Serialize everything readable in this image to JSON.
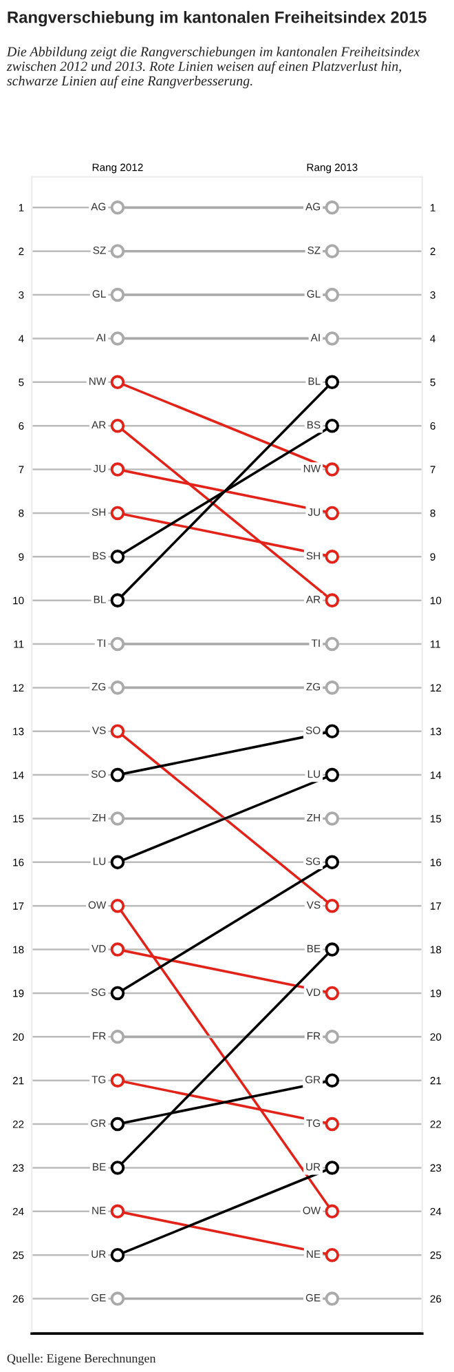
{
  "chart_data": {
    "type": "line",
    "title": "Rangverschiebung im kantonalen Freiheitsindex 2015",
    "subtitle": "Die Abbildung zeigt die Rangverschiebungen im kantonalen Freiheitsindex zwischen 2012 und 2013. Rote Linien weisen auf einen Platzverlust hin, schwarze Linien auf eine Rangverbesserung.",
    "annotations": [
      "Quelle: Eigene Berechnungen"
    ],
    "categories": [
      "Rang 2012",
      "Rang 2013"
    ],
    "ylim": [
      26.8,
      0.3
    ],
    "yticks": [
      1,
      2,
      3,
      4,
      5,
      6,
      7,
      8,
      9,
      10,
      11,
      12,
      13,
      14,
      15,
      16,
      17,
      18,
      19,
      20,
      21,
      22,
      23,
      24,
      25,
      26
    ],
    "y2lim": [
      26.8,
      0.3
    ],
    "y2ticks": [
      1,
      2,
      3,
      4,
      5,
      6,
      7,
      8,
      9,
      10,
      11,
      12,
      13,
      14,
      15,
      16,
      17,
      18,
      19,
      20,
      21,
      22,
      23,
      24,
      25,
      26
    ],
    "grid": "y",
    "marker": "circle",
    "line_style": "solid",
    "series": [
      {
        "name": "AG",
        "color": "#aaaaaa",
        "values": [
          1,
          1
        ]
      },
      {
        "name": "SZ",
        "color": "#aaaaaa",
        "values": [
          2,
          2
        ]
      },
      {
        "name": "GL",
        "color": "#aaaaaa",
        "values": [
          3,
          3
        ]
      },
      {
        "name": "AI",
        "color": "#aaaaaa",
        "values": [
          4,
          4
        ]
      },
      {
        "name": "NW",
        "color": "#e2231a",
        "values": [
          5,
          7
        ]
      },
      {
        "name": "AR",
        "color": "#e2231a",
        "values": [
          6,
          10
        ]
      },
      {
        "name": "JU",
        "color": "#e2231a",
        "values": [
          7,
          8
        ]
      },
      {
        "name": "SH",
        "color": "#e2231a",
        "values": [
          8,
          9
        ]
      },
      {
        "name": "BS",
        "color": "#000000",
        "values": [
          9,
          6
        ]
      },
      {
        "name": "BL",
        "color": "#000000",
        "values": [
          10,
          5
        ]
      },
      {
        "name": "TI",
        "color": "#aaaaaa",
        "values": [
          11,
          11
        ]
      },
      {
        "name": "ZG",
        "color": "#aaaaaa",
        "values": [
          12,
          12
        ]
      },
      {
        "name": "VS",
        "color": "#e2231a",
        "values": [
          13,
          17
        ]
      },
      {
        "name": "SO",
        "color": "#000000",
        "values": [
          14,
          13
        ]
      },
      {
        "name": "ZH",
        "color": "#aaaaaa",
        "values": [
          15,
          15
        ]
      },
      {
        "name": "LU",
        "color": "#000000",
        "values": [
          16,
          14
        ]
      },
      {
        "name": "OW",
        "color": "#e2231a",
        "values": [
          17,
          24
        ]
      },
      {
        "name": "VD",
        "color": "#e2231a",
        "values": [
          18,
          19
        ]
      },
      {
        "name": "SG",
        "color": "#000000",
        "values": [
          19,
          16
        ]
      },
      {
        "name": "FR",
        "color": "#aaaaaa",
        "values": [
          20,
          20
        ]
      },
      {
        "name": "TG",
        "color": "#e2231a",
        "values": [
          21,
          22
        ]
      },
      {
        "name": "GR",
        "color": "#000000",
        "values": [
          22,
          21
        ]
      },
      {
        "name": "BE",
        "color": "#000000",
        "values": [
          23,
          18
        ]
      },
      {
        "name": "NE",
        "color": "#e2231a",
        "values": [
          24,
          25
        ]
      },
      {
        "name": "UR",
        "color": "#000000",
        "values": [
          25,
          23
        ]
      },
      {
        "name": "GE",
        "color": "#aaaaaa",
        "values": [
          26,
          26
        ]
      }
    ]
  }
}
